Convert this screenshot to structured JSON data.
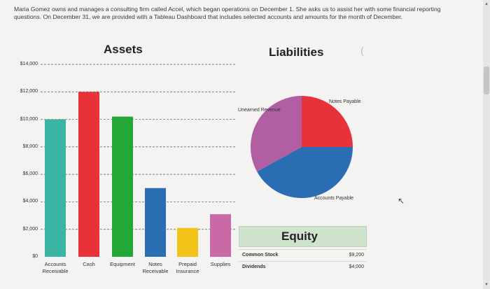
{
  "intro_text": "Maria Gomez owns and manages a consulting firm called Accel, which began operations on December 1. She asks us to assist her with some financial reporting questions. On December 31, we are provided with a Tableau Dashboard that includes selected accounts and amounts for the month of December.",
  "assets": {
    "title": "Assets",
    "yticks": [
      "$14,000",
      "$12,000",
      "$10,000",
      "$8,000",
      "$6,000",
      "$4,000",
      "$2,000",
      "$0"
    ]
  },
  "liabilities": {
    "title": "Liabilities",
    "labels": {
      "unearned": "Unearned Revenue",
      "notes": "Notes Payable",
      "accounts": "Accounts Payable"
    }
  },
  "equity": {
    "title": "Equity",
    "rows": [
      {
        "label": "Common Stock",
        "value": "$9,200"
      },
      {
        "label": "Dividends",
        "value": "$4,000"
      }
    ]
  },
  "chart_data": [
    {
      "type": "bar",
      "title": "Assets",
      "categories": [
        "Accounts Receivable",
        "Cash",
        "Equipment",
        "Notes Receivable",
        "Prepaid Insurance",
        "Supplies"
      ],
      "values": [
        10000,
        12000,
        10200,
        5000,
        2100,
        3100
      ],
      "colors": [
        "#3ab5a4",
        "#e8323a",
        "#23a838",
        "#2a6db3",
        "#f2c418",
        "#c76aa6"
      ],
      "ylim": [
        0,
        14000
      ],
      "grid": true
    },
    {
      "type": "pie",
      "title": "Liabilities",
      "categories": [
        "Notes Payable",
        "Accounts Payable",
        "Unearned Revenue"
      ],
      "values": [
        25,
        42,
        33
      ],
      "colors": [
        "#e8323a",
        "#2a6db3",
        "#b25ea3"
      ]
    }
  ]
}
